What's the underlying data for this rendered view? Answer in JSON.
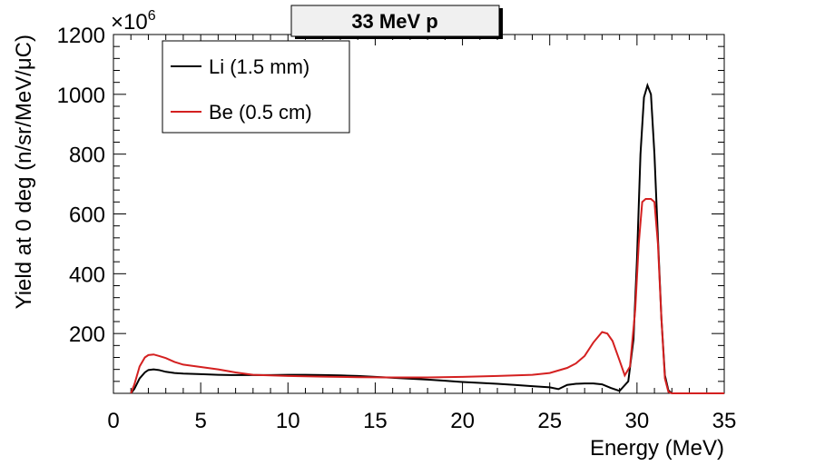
{
  "chart_data": {
    "type": "line",
    "title": "33 MeV p",
    "xlabel": "Energy (MeV)",
    "ylabel": "Yield at 0 deg (n/sr/MeV/μC)",
    "y_multiplier": "×10",
    "y_multiplier_exp": "6",
    "xlim": [
      0,
      35
    ],
    "ylim": [
      0,
      1200
    ],
    "xticks": [
      "0",
      "5",
      "10",
      "15",
      "20",
      "25",
      "30",
      "35"
    ],
    "xtick_values": [
      0,
      5,
      10,
      15,
      20,
      25,
      30,
      35
    ],
    "yticks": [
      "200",
      "400",
      "600",
      "800",
      "1000",
      "1200"
    ],
    "ytick_values": [
      200,
      400,
      600,
      800,
      1000,
      1200
    ],
    "grid": false,
    "legend_position": "top-left",
    "series": [
      {
        "name": "Li (1.5 mm)",
        "color": "#000000",
        "x": [
          1.0,
          1.2,
          1.5,
          1.8,
          2.0,
          2.3,
          2.6,
          3.0,
          3.5,
          4.0,
          5.0,
          6.0,
          7.0,
          8.0,
          9.0,
          10.0,
          11.0,
          12.0,
          13.0,
          14.0,
          15.0,
          16.0,
          17.0,
          18.0,
          19.0,
          20.0,
          21.0,
          22.0,
          23.0,
          24.0,
          25.0,
          25.5,
          26.0,
          26.5,
          27.0,
          27.5,
          28.0,
          28.5,
          29.0,
          29.5,
          29.8,
          30.0,
          30.2,
          30.4,
          30.6,
          30.8,
          31.0,
          31.2,
          31.4,
          31.6,
          31.8,
          32.0,
          33.0,
          35.0
        ],
        "y": [
          0,
          15,
          50,
          70,
          78,
          80,
          78,
          72,
          68,
          66,
          64,
          62,
          61,
          61,
          61,
          62,
          62,
          61,
          60,
          58,
          55,
          52,
          49,
          46,
          42,
          38,
          35,
          32,
          28,
          24,
          20,
          14,
          28,
          32,
          33,
          33,
          30,
          18,
          8,
          40,
          180,
          450,
          800,
          990,
          1030,
          1000,
          800,
          520,
          250,
          60,
          10,
          0,
          0,
          0
        ]
      },
      {
        "name": "Be (0.5 cm)",
        "color": "#d42020",
        "x": [
          1.0,
          1.2,
          1.5,
          1.8,
          2.0,
          2.3,
          2.6,
          3.0,
          3.5,
          4.0,
          5.0,
          6.0,
          7.0,
          8.0,
          9.0,
          10.0,
          12.0,
          14.0,
          16.0,
          18.0,
          20.0,
          22.0,
          24.0,
          25.0,
          26.0,
          26.5,
          27.0,
          27.5,
          28.0,
          28.3,
          28.6,
          29.0,
          29.3,
          29.6,
          29.9,
          30.1,
          30.3,
          30.5,
          30.8,
          31.0,
          31.2,
          31.4,
          31.6,
          31.8,
          32.0,
          33.0,
          35.0
        ],
        "y": [
          0,
          30,
          90,
          120,
          128,
          130,
          125,
          118,
          105,
          96,
          88,
          80,
          70,
          62,
          60,
          58,
          56,
          54,
          53,
          53,
          55,
          58,
          62,
          68,
          85,
          100,
          125,
          170,
          205,
          200,
          175,
          110,
          60,
          90,
          280,
          500,
          640,
          650,
          650,
          640,
          500,
          250,
          50,
          5,
          0,
          0,
          0
        ]
      }
    ]
  }
}
